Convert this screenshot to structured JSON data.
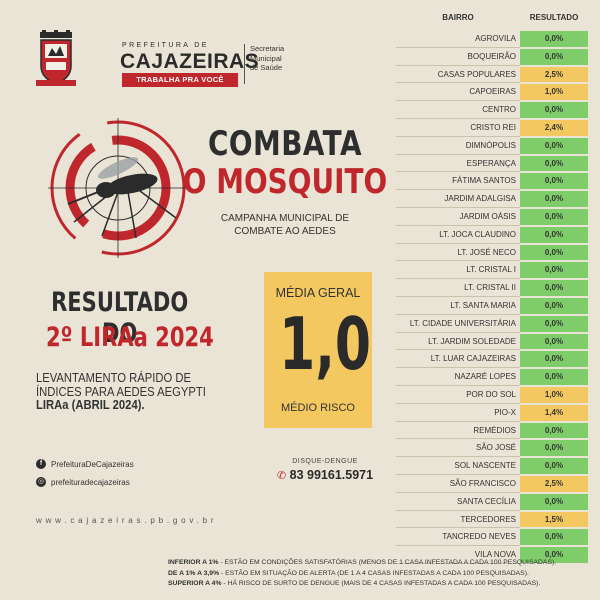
{
  "header": {
    "pref_small": "PREFEITURA DE",
    "city": "CAJAZEIRAS",
    "tagline": "TRABALHA PRA VOCÊ",
    "secretaria": [
      "Secretaria",
      "Municipal",
      "de Saúde"
    ]
  },
  "campaign": {
    "line1": "COMBATA",
    "line2": "O MOSQUITO",
    "sub1": "CAMPANHA MUNICIPAL DE",
    "sub2": "COMBATE AO AEDES"
  },
  "result": {
    "title1": "RESULTADO DO",
    "title2": "2º LIRAa 2024",
    "desc1": "LEVANTAMENTO RÁPIDO DE",
    "desc2": "ÍNDICES PARA AEDES AEGYPTI",
    "desc3": "LIRAa (ABRIL 2024)."
  },
  "media": {
    "label": "MÉDIA GERAL",
    "value": "1,0",
    "risk": "MÉDIO RISCO"
  },
  "social": {
    "facebook": "PrefeituraDeCajazeiras",
    "instagram": "prefeituradecajazeiras",
    "facebook_icon": "facebook-icon",
    "instagram_icon": "instagram-icon"
  },
  "contact": {
    "disque_label": "DISQUE-DENGUE",
    "phone": "83 99161.5971",
    "site": "www.cajazeiras.pb.gov.br"
  },
  "table": {
    "col_bairro": "BAIRRO",
    "col_resultado": "RESULTADO",
    "rows": [
      {
        "name": "AGROVILA",
        "value": "0,0%",
        "level": "low"
      },
      {
        "name": "BOQUEIRÃO",
        "value": "0,0%",
        "level": "low"
      },
      {
        "name": "CASAS POPULARES",
        "value": "2,5%",
        "level": "mid"
      },
      {
        "name": "CAPOEIRAS",
        "value": "1,0%",
        "level": "mid"
      },
      {
        "name": "CENTRO",
        "value": "0,0%",
        "level": "low"
      },
      {
        "name": "CRISTO REI",
        "value": "2,4%",
        "level": "mid"
      },
      {
        "name": "DIMNÓPOLIS",
        "value": "0,0%",
        "level": "low"
      },
      {
        "name": "ESPERANÇA",
        "value": "0,0%",
        "level": "low"
      },
      {
        "name": "FÁTIMA SANTOS",
        "value": "0,0%",
        "level": "low"
      },
      {
        "name": "JARDIM ADALGISA",
        "value": "0,0%",
        "level": "low"
      },
      {
        "name": "JARDIM OÁSIS",
        "value": "0,0%",
        "level": "low"
      },
      {
        "name": "LT. JOCA CLAUDINO",
        "value": "0,0%",
        "level": "low"
      },
      {
        "name": "LT. JOSÉ NECO",
        "value": "0,0%",
        "level": "low"
      },
      {
        "name": "LT. CRISTAL I",
        "value": "0,0%",
        "level": "low"
      },
      {
        "name": "LT. CRISTAL II",
        "value": "0,0%",
        "level": "low"
      },
      {
        "name": "LT. SANTA MARIA",
        "value": "0,0%",
        "level": "low"
      },
      {
        "name": "LT. CIDADE UNIVERSITÁRIA",
        "value": "0,0%",
        "level": "low"
      },
      {
        "name": "LT. JARDIM SOLEDADE",
        "value": "0,0%",
        "level": "low"
      },
      {
        "name": "LT. LUAR CAJAZEIRAS",
        "value": "0,0%",
        "level": "low"
      },
      {
        "name": "NAZARÉ LOPES",
        "value": "0,0%",
        "level": "low"
      },
      {
        "name": "POR DO SOL",
        "value": "1,0%",
        "level": "mid"
      },
      {
        "name": "PIO-X",
        "value": "1,4%",
        "level": "mid"
      },
      {
        "name": "REMÉDIOS",
        "value": "0,0%",
        "level": "low"
      },
      {
        "name": "SÃO JOSÉ",
        "value": "0,0%",
        "level": "low"
      },
      {
        "name": "SOL NASCENTE",
        "value": "0,0%",
        "level": "low"
      },
      {
        "name": "SÃO FRANCISCO",
        "value": "2,5%",
        "level": "mid"
      },
      {
        "name": "SANTA CECÍLIA",
        "value": "0,0%",
        "level": "low"
      },
      {
        "name": "TERCEDORES",
        "value": "1,5%",
        "level": "mid"
      },
      {
        "name": "TANCREDO NEVES",
        "value": "0,0%",
        "level": "low"
      },
      {
        "name": "VILA NOVA",
        "value": "0,0%",
        "level": "low"
      }
    ]
  },
  "legend": {
    "l1_bold": "INFERIOR A 1%",
    "l1_text": " - ESTÃO EM CONDIÇÕES SATISFATÓRIAS (MENOS DE 1 CASA INFESTADA A CADA 100 PESQUISADAS).",
    "l2_bold": "DE A 1% A 3,9%",
    "l2_text": " - ESTÃO EM SITUAÇÃO DE ALERTA (DE 1 A 4 CASAS INFESTADAS A CADA 100 PESQUISADAS).",
    "l3_bold": "SUPERIOR A 4%",
    "l3_text": " - HÁ RISCO DE SURTO DE DENGUE (MAIS DE 4 CASAS INFESTADAS A CADA 100 PESQUISADAS)."
  },
  "colors": {
    "low": "#7fcd6a",
    "mid": "#f4c860",
    "accent": "#c0272d",
    "background": "#e9e4d6"
  }
}
